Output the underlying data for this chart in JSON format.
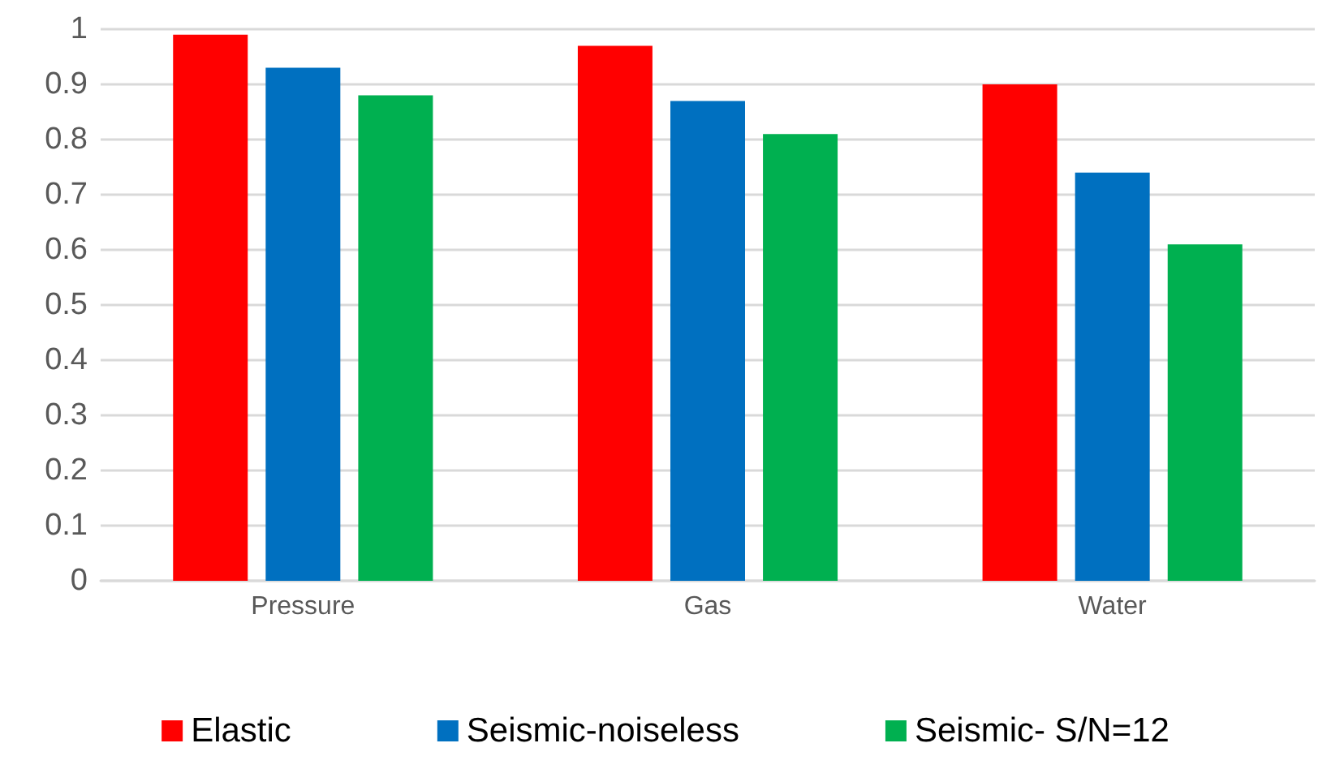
{
  "chart_data": {
    "type": "bar",
    "categories": [
      "Pressure",
      "Gas",
      "Water"
    ],
    "series": [
      {
        "name": "Elastic",
        "color": "#ff0000",
        "values": [
          0.99,
          0.97,
          0.9
        ]
      },
      {
        "name": "Seismic-noiseless",
        "color": "#0070c0",
        "values": [
          0.93,
          0.87,
          0.74
        ]
      },
      {
        "name": "Seismic- S/N=12",
        "color": "#00b050",
        "values": [
          0.88,
          0.81,
          0.61
        ]
      }
    ],
    "ylim": [
      0,
      1
    ],
    "yticks": [
      0,
      0.1,
      0.2,
      0.3,
      0.4,
      0.5,
      0.6,
      0.7,
      0.8,
      0.9,
      1
    ],
    "grid": "y",
    "legend": "bottom"
  }
}
